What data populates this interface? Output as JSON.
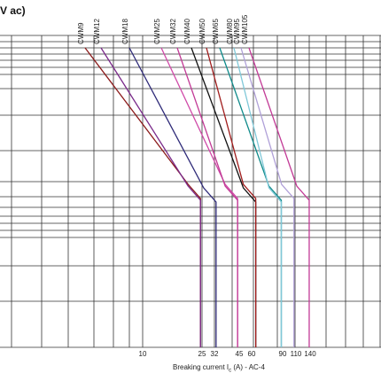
{
  "chart_data": {
    "type": "line",
    "title_fragment": "V ac)",
    "xlabel": "Breaking current I",
    "xlabel_sub": "c",
    "xlabel_suffix": " (A) - AC-4",
    "x_scale": "log",
    "xlim": [
      6,
      170
    ],
    "grid": true,
    "x_ticks": [
      10,
      25,
      32,
      45,
      60,
      90,
      110,
      140
    ],
    "series": [
      {
        "name": "CWM9",
        "color": "#8b1a1a",
        "end_x": 25
      },
      {
        "name": "CWM12",
        "color": "#7a2a8a",
        "end_x": 25
      },
      {
        "name": "CWM18",
        "color": "#2e2a78",
        "end_x": 32
      },
      {
        "name": "CWM25",
        "color": "#d04aa8",
        "end_x": 45
      },
      {
        "name": "CWM32",
        "color": "#c23a96",
        "end_x": 45
      },
      {
        "name": "CWM40",
        "color": "#111111",
        "end_x": 60
      },
      {
        "name": "CWM50",
        "color": "#a01c1c",
        "end_x": 60
      },
      {
        "name": "CWM65",
        "color": "#0f8a8a",
        "end_x": 90
      },
      {
        "name": "CWM80",
        "color": "#7fc8d8",
        "end_x": 90
      },
      {
        "name": "CWM95",
        "color": "#b0a0d8",
        "end_x": 110
      },
      {
        "name": "CWM105",
        "color": "#c23a96",
        "end_x": 140
      }
    ]
  }
}
